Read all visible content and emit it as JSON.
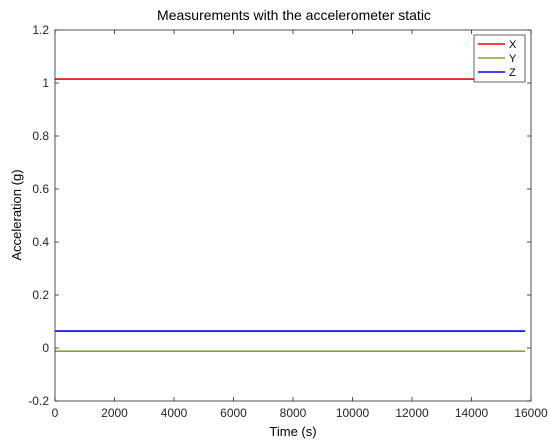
{
  "chart_data": {
    "type": "line",
    "title": "Measurements with the accelerometer static",
    "xlabel": "Time (s)",
    "ylabel": "Acceleration (g)",
    "xlim": [
      0,
      16000
    ],
    "ylim": [
      -0.2,
      1.2
    ],
    "xticks": [
      "0",
      "2000",
      "4000",
      "6000",
      "8000",
      "10000",
      "12000",
      "14000",
      "16000"
    ],
    "yticks": [
      "-0.2",
      "0",
      "0.2",
      "0.4",
      "0.6",
      "0.8",
      "1",
      "1.2"
    ],
    "grid": false,
    "legend_position": "top-right",
    "x": [
      0,
      15800
    ],
    "series": [
      {
        "name": "X",
        "color": "#ff0000",
        "values": [
          1.015,
          1.015
        ]
      },
      {
        "name": "Y",
        "color": "#77ac30",
        "values": [
          -0.012,
          -0.012
        ]
      },
      {
        "name": "Z",
        "color": "#0000ff",
        "values": [
          0.064,
          0.064
        ]
      }
    ]
  }
}
